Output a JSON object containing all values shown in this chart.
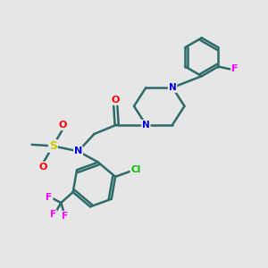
{
  "bg_color": "#e6e6e6",
  "bond_color": "#2d6b6b",
  "atom_colors": {
    "N": "#0000ee",
    "O": "#ff0000",
    "S": "#cccc00",
    "F": "#ff00ff",
    "Cl": "#00bb00"
  },
  "bond_width": 1.8,
  "figsize": [
    3.0,
    3.0
  ],
  "dpi": 100
}
